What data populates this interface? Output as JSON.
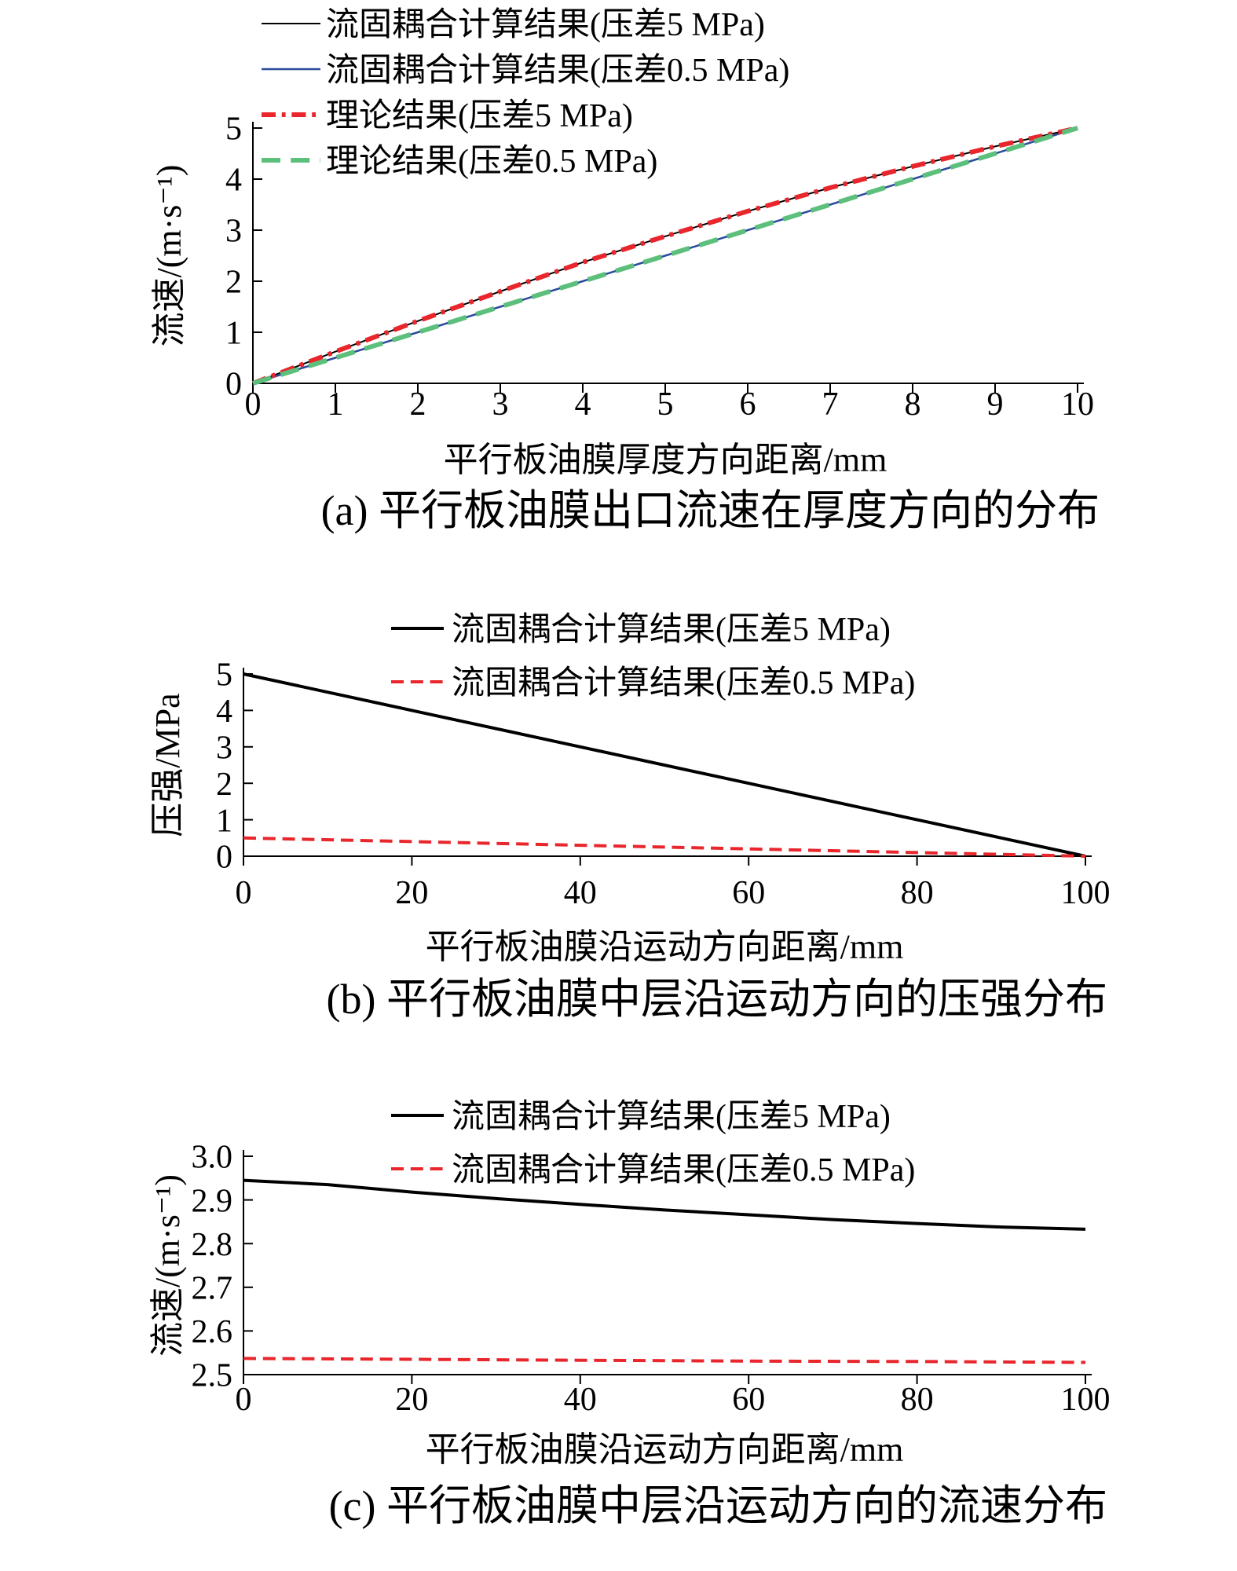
{
  "chart_data": [
    {
      "type": "line",
      "caption": "(a) 平行板油膜出口流速在厚度方向的分布",
      "xlabel": "平行板油膜厚度方向距离/mm",
      "ylabel": "流速/(m·s⁻¹)",
      "xlim": [
        0,
        10
      ],
      "ylim": [
        0,
        5
      ],
      "xticks": [
        0,
        1,
        2,
        3,
        4,
        5,
        6,
        7,
        8,
        9,
        10
      ],
      "yticks": [
        0,
        1,
        2,
        3,
        4,
        5
      ],
      "grid": false,
      "legend_position": "top-left",
      "series": [
        {
          "name": "流固耦合计算结果(压差5 MPa)",
          "color": "#000000",
          "dash": "solid",
          "width": 2,
          "x": [
            0,
            1,
            2,
            3,
            4,
            5,
            6,
            7,
            8,
            9,
            10
          ],
          "y": [
            0,
            0.62,
            1.22,
            1.8,
            2.37,
            2.88,
            3.37,
            3.83,
            4.25,
            4.64,
            5.0
          ]
        },
        {
          "name": "流固耦合计算结果(压差0.5 MPa)",
          "color": "#2b4c9c",
          "dash": "solid",
          "width": 2.5,
          "x": [
            0,
            1,
            2,
            3,
            4,
            5,
            6,
            7,
            8,
            9,
            10
          ],
          "y": [
            0,
            0.5,
            1.0,
            1.5,
            2.0,
            2.5,
            3.0,
            3.5,
            4.0,
            4.5,
            5.0
          ]
        },
        {
          "name": "理论结果(压差5 MPa)",
          "color": "#e8262c",
          "dash": "dashdot",
          "width": 6,
          "x": [
            0,
            1,
            2,
            3,
            4,
            5,
            6,
            7,
            8,
            9,
            10
          ],
          "y": [
            0,
            0.62,
            1.22,
            1.8,
            2.37,
            2.88,
            3.37,
            3.83,
            4.25,
            4.64,
            5.0
          ]
        },
        {
          "name": "理论结果(压差0.5 MPa)",
          "color": "#5cbf7c",
          "dash": "dashed",
          "width": 6,
          "x": [
            0,
            1,
            2,
            3,
            4,
            5,
            6,
            7,
            8,
            9,
            10
          ],
          "y": [
            0,
            0.5,
            1.0,
            1.5,
            2.0,
            2.5,
            3.0,
            3.5,
            4.0,
            4.5,
            5.0
          ]
        }
      ]
    },
    {
      "type": "line",
      "caption": "(b) 平行板油膜中层沿运动方向的压强分布",
      "xlabel": "平行板油膜沿运动方向距离/mm",
      "ylabel": "压强/MPa",
      "xlim": [
        0,
        100
      ],
      "ylim": [
        0,
        5
      ],
      "xticks": [
        0,
        20,
        40,
        60,
        80,
        100
      ],
      "yticks": [
        0,
        1,
        2,
        3,
        4,
        5
      ],
      "grid": false,
      "legend_position": "top-right",
      "series": [
        {
          "name": "流固耦合计算结果(压差5 MPa)",
          "color": "#000000",
          "dash": "solid",
          "width": 4,
          "x": [
            0,
            20,
            40,
            60,
            80,
            100
          ],
          "y": [
            5.0,
            4.0,
            3.0,
            2.0,
            1.0,
            0.0
          ]
        },
        {
          "name": "流固耦合计算结果(压差0.5 MPa)",
          "color": "#e8262c",
          "dash": "dashed",
          "width": 4,
          "x": [
            0,
            20,
            40,
            60,
            80,
            100
          ],
          "y": [
            0.5,
            0.4,
            0.3,
            0.2,
            0.1,
            0.0
          ]
        }
      ]
    },
    {
      "type": "line",
      "caption": "(c) 平行板油膜中层沿运动方向的流速分布",
      "xlabel": "平行板油膜沿运动方向距离/mm",
      "ylabel": "流速/(m·s⁻¹)",
      "xlim": [
        0,
        100
      ],
      "ylim": [
        2.5,
        3.0
      ],
      "xticks": [
        0,
        20,
        40,
        60,
        80,
        100
      ],
      "yticks": [
        "2.5",
        "2.6",
        "2.7",
        "2.8",
        "2.9",
        "3.0"
      ],
      "grid": false,
      "legend_position": "top-right",
      "series": [
        {
          "name": "流固耦合计算结果(压差5 MPa)",
          "color": "#000000",
          "dash": "solid",
          "width": 4,
          "x": [
            0,
            10,
            20,
            30,
            40,
            50,
            60,
            70,
            80,
            90,
            100
          ],
          "y": [
            2.945,
            2.935,
            2.918,
            2.903,
            2.89,
            2.877,
            2.866,
            2.855,
            2.846,
            2.838,
            2.833
          ]
        },
        {
          "name": "流固耦合计算结果(压差0.5 MPa)",
          "color": "#e8262c",
          "dash": "dashed",
          "width": 4,
          "x": [
            0,
            20,
            40,
            60,
            80,
            100
          ],
          "y": [
            2.537,
            2.535,
            2.533,
            2.531,
            2.53,
            2.528
          ]
        }
      ]
    }
  ]
}
